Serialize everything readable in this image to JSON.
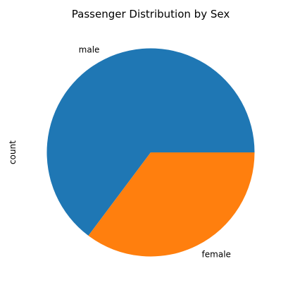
{
  "chart_data": {
    "type": "pie",
    "title": "Passenger Distribution by Sex",
    "ylabel": "count",
    "categories": [
      "male",
      "female"
    ],
    "values": [
      577,
      314
    ],
    "colors": [
      "#1f77b4",
      "#ff7f0e"
    ],
    "start_angle_deg": 0,
    "direction": "counterclockwise",
    "legend": "none"
  }
}
